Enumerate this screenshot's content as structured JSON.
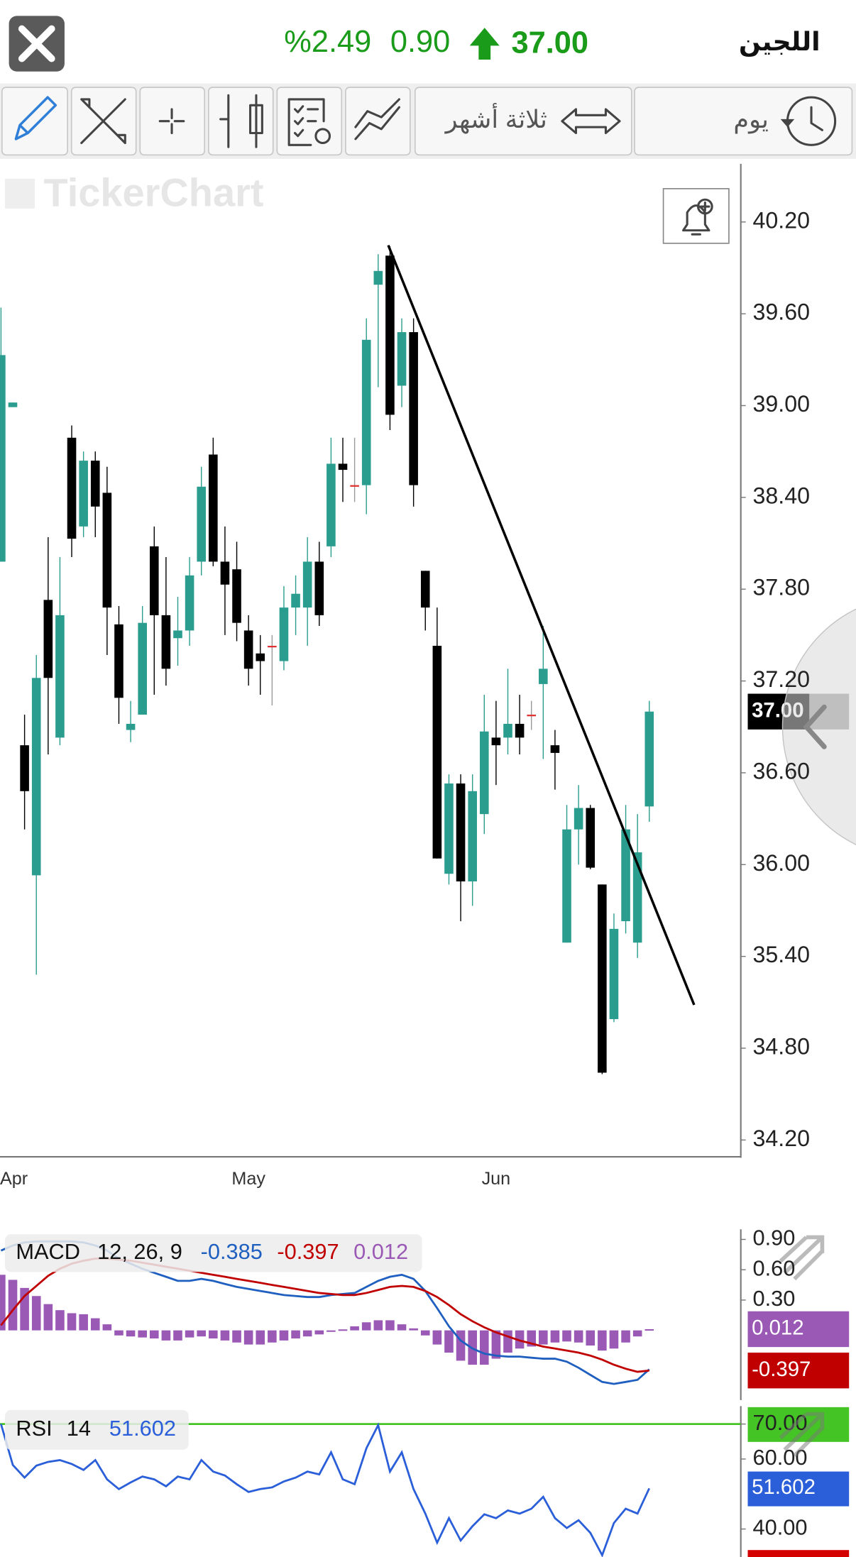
{
  "header": {
    "title": "اللجين",
    "price": "37.00",
    "change": "0.90",
    "change_percent": "%2.49"
  },
  "toolbar": {
    "period": "ثلاثة أشهر",
    "interval": "يوم"
  },
  "chart_data": [
    {
      "type": "candlestick",
      "watermark": "TickerChart",
      "categories": [
        null,
        "Apr",
        null,
        null,
        null,
        null,
        null,
        null,
        null,
        null,
        null,
        null,
        null,
        null,
        null,
        null,
        null,
        null,
        null,
        null,
        null,
        "May",
        null,
        null,
        null,
        null,
        null,
        null,
        null,
        null,
        null,
        null,
        null,
        null,
        null,
        null,
        null,
        null,
        null,
        null,
        null,
        null,
        "Jun",
        null,
        null,
        null,
        null,
        null,
        null,
        null,
        null,
        null,
        null,
        null,
        null,
        null
      ],
      "open": [
        37.98,
        38.99,
        36.78,
        35.93,
        37.73,
        36.83,
        38.79,
        38.21,
        38.64,
        38.43,
        37.57,
        36.88,
        36.98,
        38.08,
        37.63,
        37.48,
        37.53,
        37.98,
        38.68,
        37.98,
        37.93,
        37.53,
        37.38,
        37.43,
        37.33,
        37.68,
        37.68,
        37.98,
        38.08,
        38.62,
        38.48,
        38.48,
        39.79,
        39.98,
        39.13,
        39.48,
        37.92,
        37.43,
        35.94,
        36.53,
        35.89,
        36.33,
        36.83,
        36.83,
        36.92,
        36.98,
        37.18,
        36.78,
        35.49,
        36.23,
        36.37,
        35.87,
        34.99,
        35.63,
        35.49,
        36.38
      ],
      "high": [
        39.64,
        39.02,
        36.98,
        37.37,
        38.14,
        38.01,
        38.87,
        38.7,
        38.7,
        38.6,
        37.69,
        37.07,
        37.69,
        38.21,
        38.01,
        37.75,
        38.01,
        38.6,
        38.79,
        38.21,
        38.11,
        37.63,
        37.5,
        37.5,
        37.82,
        37.89,
        38.14,
        38.11,
        38.79,
        38.79,
        38.79,
        39.57,
        39.99,
        40.04,
        39.57,
        39.57,
        37.92,
        37.68,
        36.59,
        36.59,
        36.59,
        37.11,
        37.07,
        37.28,
        37.11,
        37.07,
        37.56,
        36.88,
        36.39,
        36.52,
        36.39,
        35.87,
        35.68,
        36.39,
        36.33,
        37.07
      ],
      "low": [
        37.98,
        38.99,
        36.23,
        35.28,
        36.72,
        36.78,
        38.01,
        38.14,
        38.14,
        37.37,
        36.92,
        36.8,
        36.98,
        37.11,
        37.17,
        37.3,
        37.43,
        37.89,
        37.95,
        37.5,
        37.46,
        37.17,
        37.11,
        37.04,
        37.27,
        37.5,
        37.43,
        37.56,
        38.01,
        38.37,
        38.37,
        38.29,
        39.12,
        38.84,
        38.99,
        38.34,
        37.53,
        36.04,
        35.87,
        35.63,
        35.73,
        36.2,
        36.52,
        36.72,
        36.72,
        36.88,
        36.69,
        36.49,
        35.49,
        36.0,
        35.97,
        34.63,
        34.97,
        35.55,
        35.39,
        36.28
      ],
      "close": [
        39.33,
        39.02,
        36.48,
        37.22,
        37.22,
        37.63,
        38.13,
        38.64,
        38.34,
        37.68,
        37.09,
        36.92,
        37.58,
        37.63,
        37.28,
        37.53,
        37.89,
        38.47,
        37.98,
        37.83,
        37.58,
        37.28,
        37.33,
        37.43,
        37.68,
        37.77,
        37.98,
        37.63,
        38.62,
        38.58,
        38.48,
        39.43,
        39.88,
        38.94,
        39.48,
        38.48,
        37.68,
        36.04,
        36.53,
        35.89,
        36.48,
        36.87,
        36.78,
        36.92,
        36.83,
        36.98,
        37.28,
        36.73,
        36.23,
        36.37,
        35.98,
        34.64,
        35.58,
        36.23,
        36.08,
        37
      ],
      "up_color": "#2a9d8f",
      "down_color": "#000000",
      "doji_color": "#e03030",
      "ylim": [
        34.09,
        40.58
      ],
      "yticks": [
        {
          "value": 40.2,
          "label": "40.20"
        },
        {
          "value": 39.6,
          "label": "39.60"
        },
        {
          "value": 39,
          "label": "39.00"
        },
        {
          "value": 38.4,
          "label": "38.40"
        },
        {
          "value": 37.8,
          "label": "37.80"
        },
        {
          "value": 37.2,
          "label": "37.20"
        },
        {
          "value": 36.6,
          "label": "36.60"
        },
        {
          "value": 36,
          "label": "36.00"
        },
        {
          "value": 35.4,
          "label": "35.40"
        },
        {
          "value": 34.8,
          "label": "34.80"
        },
        {
          "value": 34.2,
          "label": "34.20"
        }
      ],
      "last_label": "37.00",
      "last_color": "#000000"
    },
    {
      "type": "macd",
      "title": "MACD",
      "params": "12, 26, 9",
      "macd": {
        "color": "#1f5fbf",
        "values": [
          0.79,
          0.84,
          0.87,
          0.88,
          0.88,
          0.88,
          0.88,
          0.87,
          0.84,
          0.79,
          0.71,
          0.66,
          0.61,
          0.57,
          0.53,
          0.49,
          0.49,
          0.51,
          0.49,
          0.46,
          0.43,
          0.41,
          0.39,
          0.37,
          0.35,
          0.34,
          0.33,
          0.33,
          0.35,
          0.36,
          0.37,
          0.43,
          0.49,
          0.53,
          0.55,
          0.51,
          0.39,
          0.22,
          0.04,
          -0.1,
          -0.18,
          -0.23,
          -0.25,
          -0.26,
          -0.26,
          -0.27,
          -0.28,
          -0.28,
          -0.31,
          -0.37,
          -0.44,
          -0.51,
          -0.53,
          -0.51,
          -0.49,
          -0.385
        ]
      },
      "signal": {
        "color": "#c00000",
        "values": [
          0.05,
          0.2,
          0.34,
          0.44,
          0.54,
          0.61,
          0.66,
          0.69,
          0.71,
          0.71,
          0.7,
          0.69,
          0.67,
          0.65,
          0.63,
          0.61,
          0.59,
          0.57,
          0.55,
          0.53,
          0.51,
          0.49,
          0.47,
          0.45,
          0.43,
          0.41,
          0.39,
          0.37,
          0.36,
          0.35,
          0.35,
          0.37,
          0.4,
          0.43,
          0.44,
          0.43,
          0.39,
          0.33,
          0.25,
          0.16,
          0.09,
          0.03,
          -0.02,
          -0.06,
          -0.1,
          -0.13,
          -0.16,
          -0.18,
          -0.2,
          -0.22,
          -0.25,
          -0.29,
          -0.34,
          -0.38,
          -0.41,
          -0.397
        ]
      },
      "histogram": {
        "color": "#9b59b6",
        "values": [
          0.55,
          0.5,
          0.42,
          0.34,
          0.26,
          0.2,
          0.17,
          0.16,
          0.12,
          0.06,
          -0.05,
          -0.06,
          -0.07,
          -0.08,
          -0.1,
          -0.1,
          -0.07,
          -0.06,
          -0.08,
          -0.1,
          -0.12,
          -0.14,
          -0.14,
          -0.12,
          -0.1,
          -0.08,
          -0.06,
          -0.04,
          -0.01,
          0.01,
          0.04,
          0.08,
          0.1,
          0.1,
          0.06,
          0.02,
          -0.05,
          -0.14,
          -0.22,
          -0.3,
          -0.34,
          -0.34,
          -0.28,
          -0.22,
          -0.18,
          -0.16,
          -0.14,
          -0.12,
          -0.11,
          -0.12,
          -0.15,
          -0.2,
          -0.18,
          -0.12,
          -0.06,
          0.012
        ]
      },
      "ylim": [
        -0.69,
        1.0
      ],
      "yticks": [
        {
          "value": 0.9,
          "label": "0.90"
        },
        {
          "value": 0.6,
          "label": "0.60"
        },
        {
          "value": 0.3,
          "label": "0.30"
        }
      ]
    },
    {
      "type": "rsi",
      "title": "RSI",
      "params": "14",
      "color": "#2b5fd9",
      "values": [
        70,
        58.3,
        54.7,
        58.1,
        59.2,
        59.7,
        58.6,
        56.9,
        59.7,
        54.2,
        51.4,
        53.3,
        55.0,
        54.2,
        52.2,
        55.0,
        54.2,
        59.7,
        56.4,
        55.3,
        52.8,
        50.6,
        51.4,
        51.9,
        53.6,
        54.7,
        56.4,
        55.6,
        61.9,
        54.2,
        52.8,
        63.1,
        69.7,
        56.4,
        61.9,
        51.4,
        44.4,
        36.1,
        43.1,
        36.7,
        40.8,
        44.2,
        43.1,
        45.3,
        44.4,
        45.8,
        49.2,
        43.1,
        40.3,
        42.5,
        38.9,
        32.5,
        41.7,
        45.8,
        44.4,
        51.602
      ],
      "levels": [
        70
      ],
      "level_color": "#44c425",
      "ylim": [
        32,
        74
      ],
      "yticks": [
        {
          "value": 70,
          "label": "70.00"
        },
        {
          "value": 60,
          "label": "60.00"
        },
        {
          "value": 40,
          "label": "40.00"
        }
      ]
    }
  ]
}
